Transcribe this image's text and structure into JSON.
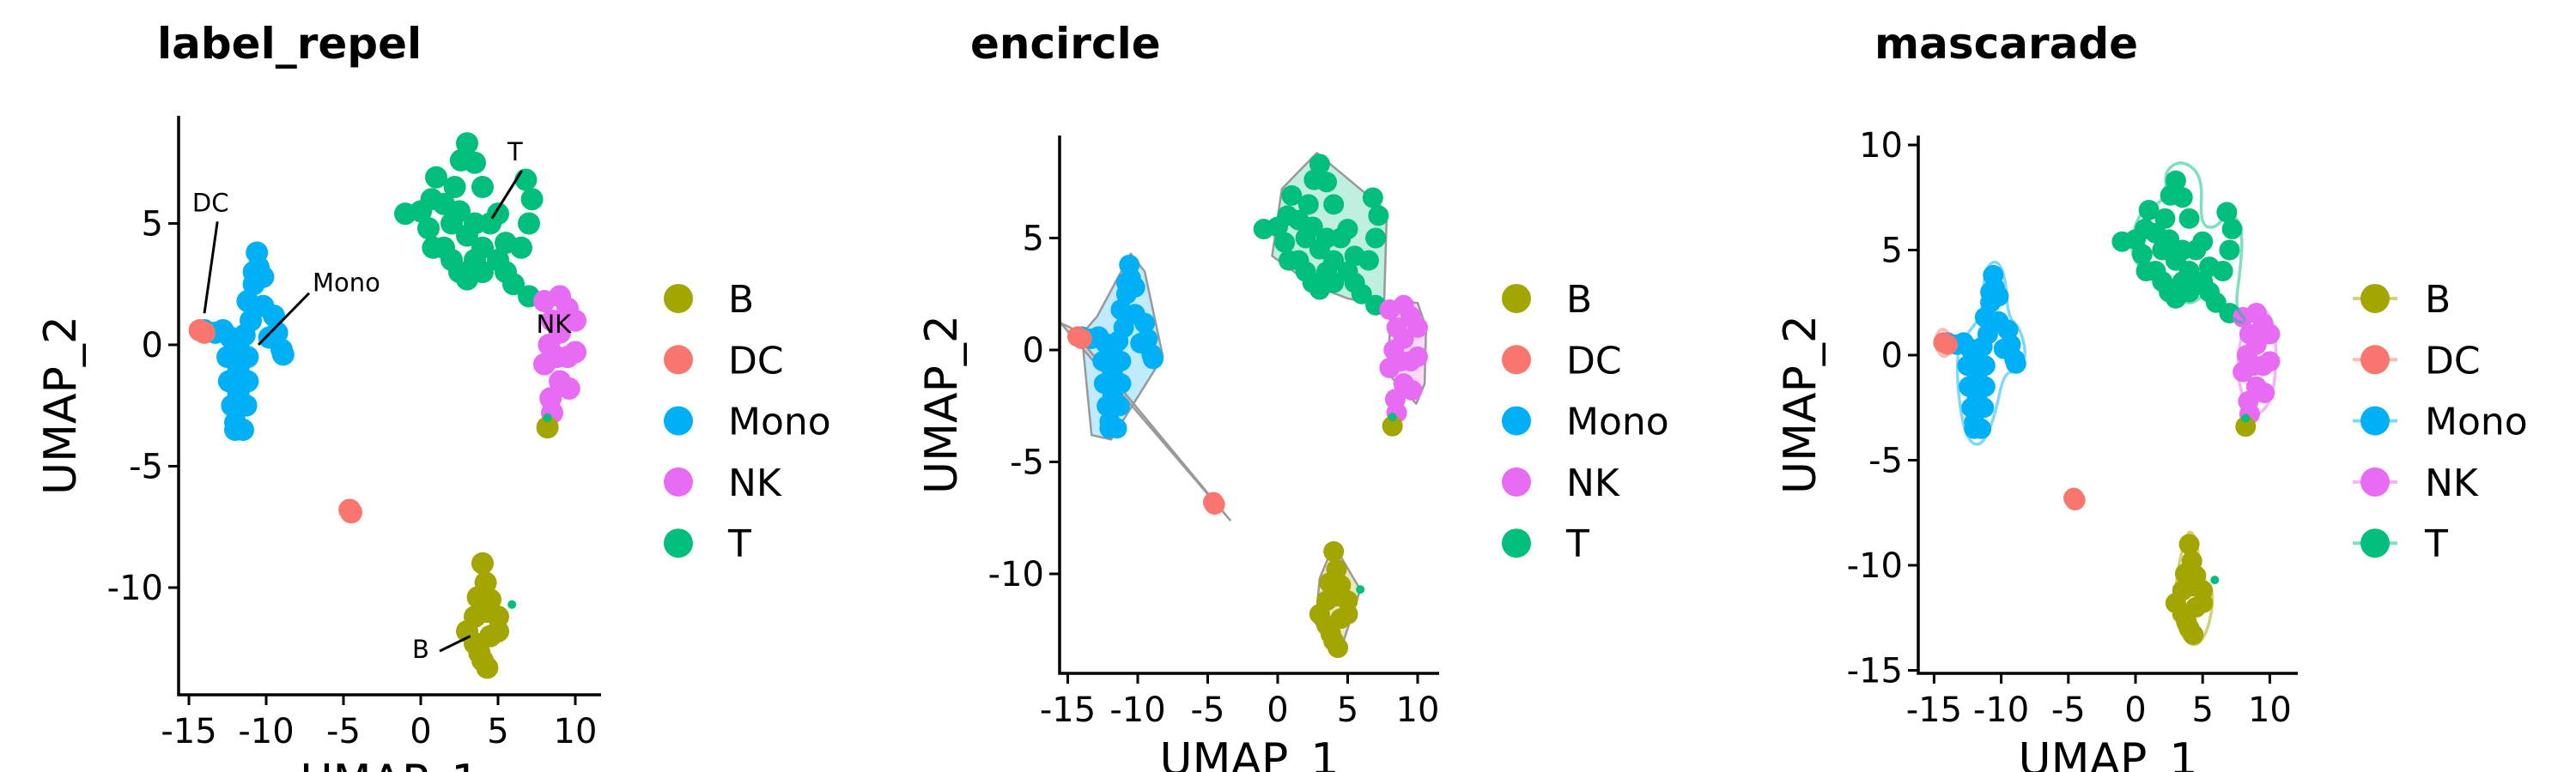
{
  "colors": {
    "B": "#A3A500",
    "DC": "#F8766D",
    "Mono": "#00B0F6",
    "NK": "#E76BF3",
    "T": "#00BF7D"
  },
  "chart_data": [
    {
      "type": "scatter",
      "title": "label_repel",
      "xlabel": "UMAP_1",
      "ylabel": "UMAP_2",
      "xticks": [
        "-15",
        "-10",
        "-5",
        "0",
        "5",
        "10"
      ],
      "yticks": [
        "-10",
        "-5",
        "0",
        "5"
      ],
      "legend": [
        "B",
        "DC",
        "Mono",
        "NK",
        "T"
      ],
      "legend_position": "right",
      "labels": [
        {
          "text": "DC",
          "at": [
            -13.6,
            5.5
          ],
          "point": [
            -14.0,
            1.3
          ]
        },
        {
          "text": "Mono",
          "at": [
            -7.0,
            2.2
          ],
          "point": [
            -10.5,
            0.0
          ]
        },
        {
          "text": "T",
          "at": [
            6.1,
            7.6
          ],
          "point": [
            4.6,
            5.2
          ]
        },
        {
          "text": "NK",
          "at": [
            8.6,
            0.5
          ],
          "point": null
        },
        {
          "text": "B",
          "at": [
            0.0,
            -12.9
          ],
          "point": [
            3.2,
            -12.0
          ]
        }
      ]
    },
    {
      "type": "scatter",
      "title": "encircle",
      "xlabel": "UMAP_1",
      "ylabel": "UMAP_2",
      "xticks": [
        "-15",
        "-10",
        "-5",
        "0",
        "5",
        "10"
      ],
      "yticks": [
        "-10",
        "-5",
        "0",
        "5"
      ],
      "legend": [
        "B",
        "DC",
        "Mono",
        "NK",
        "T"
      ],
      "legend_position": "right"
    },
    {
      "type": "scatter",
      "title": "mascarade",
      "xlabel": "UMAP_1",
      "ylabel": "UMAP_2",
      "xticks": [
        "-15",
        "-10",
        "-5",
        "0",
        "5",
        "10"
      ],
      "yticks": [
        "-15",
        "-10",
        "-5",
        "0",
        "5",
        "10"
      ],
      "legend": [
        "B",
        "DC",
        "Mono",
        "NK",
        "T"
      ],
      "legend_position": "right"
    }
  ],
  "points": {
    "Mono": [
      [
        -12,
        -3.2
      ],
      [
        -11.5,
        -3.5
      ],
      [
        -12.2,
        -2.5
      ],
      [
        -11.3,
        -2.5
      ],
      [
        -12.4,
        -1.5
      ],
      [
        -11.2,
        -1.5
      ],
      [
        -12.5,
        -0.5
      ],
      [
        -11.2,
        -0.5
      ],
      [
        -12.3,
        0.3
      ],
      [
        -11.4,
        0.4
      ],
      [
        -13.3,
        0.5
      ],
      [
        -12.8,
        0.6
      ],
      [
        -11,
        1
      ],
      [
        -11.2,
        1.8
      ],
      [
        -10.8,
        2.5
      ],
      [
        -10.5,
        3.2
      ],
      [
        -10.6,
        3.8
      ],
      [
        -10.2,
        2.8
      ],
      [
        -10.2,
        1.6
      ],
      [
        -9.5,
        1.2
      ],
      [
        -9.3,
        0.5
      ],
      [
        -9,
        -0.2
      ],
      [
        -8.9,
        -0.4
      ],
      [
        -9.8,
        0.3
      ],
      [
        -14,
        0.6
      ],
      [
        -11.8,
        -2
      ],
      [
        -11.8,
        -1
      ],
      [
        -11.8,
        0
      ],
      [
        -12,
        -3.5
      ],
      [
        -10.8,
        3
      ]
    ],
    "DC": [
      [
        -14.3,
        0.6
      ],
      [
        -14,
        0.5
      ],
      [
        -4.6,
        -6.8
      ],
      [
        -4.5,
        -6.9
      ]
    ],
    "T": [
      [
        0,
        5.5
      ],
      [
        0.5,
        4.8
      ],
      [
        0.8,
        4
      ],
      [
        0.7,
        6
      ],
      [
        1,
        6.9
      ],
      [
        1.5,
        4
      ],
      [
        2,
        3.5
      ],
      [
        2.5,
        3
      ],
      [
        3,
        2.7
      ],
      [
        3.5,
        3.5
      ],
      [
        3,
        4.5
      ],
      [
        2.5,
        5.5
      ],
      [
        2.2,
        6.5
      ],
      [
        2.6,
        7.6
      ],
      [
        3,
        8.3
      ],
      [
        3.5,
        7.5
      ],
      [
        4,
        6.5
      ],
      [
        4.5,
        5
      ],
      [
        4,
        4
      ],
      [
        5,
        3.5
      ],
      [
        5.5,
        4.2
      ],
      [
        5.5,
        3
      ],
      [
        6,
        2.5
      ],
      [
        7,
        2
      ],
      [
        6.5,
        4
      ],
      [
        7,
        5
      ],
      [
        7.2,
        6
      ],
      [
        6.8,
        6.8
      ],
      [
        -1,
        5.4
      ],
      [
        5,
        5.4
      ],
      [
        2,
        5
      ],
      [
        1.5,
        5.8
      ],
      [
        4,
        3
      ],
      [
        3.5,
        5
      ]
    ],
    "NK": [
      [
        8,
        1.8
      ],
      [
        9,
        2
      ],
      [
        9.5,
        1.5
      ],
      [
        10,
        1
      ],
      [
        8.5,
        1
      ],
      [
        8.3,
        0
      ],
      [
        8,
        -0.8
      ],
      [
        8.8,
        -0.5
      ],
      [
        9.5,
        -0.5
      ],
      [
        10,
        -0.3
      ],
      [
        9,
        -1.5
      ],
      [
        9.6,
        -1.8
      ],
      [
        8.5,
        -2.8
      ],
      [
        8.4,
        -2.2
      ],
      [
        9,
        0.5
      ]
    ],
    "B": [
      [
        4,
        -9
      ],
      [
        4.2,
        -9.8
      ],
      [
        3.7,
        -10.4
      ],
      [
        3.5,
        -11.2
      ],
      [
        4.2,
        -11
      ],
      [
        5,
        -11.2
      ],
      [
        3,
        -11.8
      ],
      [
        3.5,
        -12.3
      ],
      [
        4.5,
        -12
      ],
      [
        5,
        -11.8
      ],
      [
        4,
        -13
      ],
      [
        4.3,
        -13.3
      ],
      [
        3.8,
        -12.7
      ],
      [
        8.2,
        -3.4
      ],
      [
        4.5,
        -10.5
      ]
    ],
    "T_extra": [
      [
        5.9,
        -10.7
      ],
      [
        8.2,
        -3
      ]
    ]
  },
  "hulls": {
    "T": [
      [
        2.8,
        8.8
      ],
      [
        7.8,
        6.2
      ],
      [
        7.6,
        2.0
      ],
      [
        5,
        2.3
      ],
      [
        2.5,
        2.9
      ],
      [
        -0.4,
        4.2
      ],
      [
        0.3,
        7.2
      ]
    ],
    "NK": [
      [
        8.5,
        2.2
      ],
      [
        10,
        2.1
      ],
      [
        10.6,
        1.0
      ],
      [
        10.5,
        -1.5
      ],
      [
        9.9,
        -2.4
      ],
      [
        7.8,
        -1.0
      ],
      [
        8.1,
        1.5
      ]
    ],
    "Mono": [
      [
        -10.5,
        4.3
      ],
      [
        -9.5,
        3.5
      ],
      [
        -8.2,
        -0.3
      ],
      [
        -11.9,
        -4.0
      ],
      [
        -13.3,
        -3.8
      ],
      [
        -14.0,
        0.7
      ],
      [
        -12.9,
        1.5
      ]
    ],
    "DC": [
      [
        -14.8,
        1.0
      ],
      [
        -3.4,
        -7.6
      ],
      [
        -14.4,
        0.4
      ],
      [
        -15.5,
        1.2
      ]
    ],
    "B": [
      [
        4.0,
        -8.7
      ],
      [
        5.9,
        -10.7
      ],
      [
        4.4,
        -13.6
      ],
      [
        2.7,
        -12.2
      ],
      [
        3.0,
        -10.2
      ]
    ]
  },
  "contours": {
    "T": [
      [
        3.5,
        9.3
      ],
      [
        5,
        8.5
      ],
      [
        4.8,
        6.2
      ],
      [
        6,
        6
      ],
      [
        7,
        7
      ],
      [
        8,
        6
      ],
      [
        7.8,
        4
      ],
      [
        7.4,
        2.2
      ],
      [
        8.4,
        1.6
      ],
      [
        7.5,
        1.5
      ],
      [
        5.5,
        3.1
      ],
      [
        4,
        2.3
      ],
      [
        2.8,
        3
      ],
      [
        1.8,
        3.3
      ],
      [
        0.2,
        4.2
      ],
      [
        -0.4,
        5
      ],
      [
        0.2,
        6.8
      ],
      [
        1.8,
        7.2
      ],
      [
        2.3,
        7.8
      ],
      [
        2.2,
        8.8
      ]
    ],
    "NK": [
      [
        8.5,
        2.4
      ],
      [
        9.8,
        2.2
      ],
      [
        10.5,
        1
      ],
      [
        10.4,
        -1.5
      ],
      [
        9.7,
        -2.6
      ],
      [
        8.6,
        -3
      ],
      [
        7.7,
        -1.5
      ],
      [
        7.6,
        0
      ],
      [
        8.1,
        1.5
      ]
    ],
    "Mono": [
      [
        -10.4,
        4.6
      ],
      [
        -9.7,
        3.8
      ],
      [
        -9.5,
        1.8
      ],
      [
        -8.6,
        1.3
      ],
      [
        -8.1,
        0
      ],
      [
        -8.7,
        -0.8
      ],
      [
        -9.8,
        -0.8
      ],
      [
        -10.5,
        -3
      ],
      [
        -11.5,
        -4.4
      ],
      [
        -12.6,
        -4
      ],
      [
        -13.2,
        -2
      ],
      [
        -13.3,
        0
      ],
      [
        -12.8,
        0.8
      ],
      [
        -11.3,
        2
      ],
      [
        -11.3,
        4
      ]
    ],
    "DC": [
      [
        -14.6,
        1.3
      ],
      [
        -13.8,
        1.1
      ],
      [
        -13.8,
        0
      ],
      [
        -14.5,
        -0.1
      ],
      [
        -15,
        0.6
      ]
    ],
    "B": [
      [
        3.9,
        -8.2
      ],
      [
        4.6,
        -8.8
      ],
      [
        4.8,
        -10.5
      ],
      [
        5.9,
        -11.2
      ],
      [
        5.4,
        -13.2
      ],
      [
        4.3,
        -14
      ],
      [
        3.1,
        -13
      ],
      [
        2.9,
        -11.5
      ],
      [
        3.2,
        -10
      ]
    ]
  }
}
